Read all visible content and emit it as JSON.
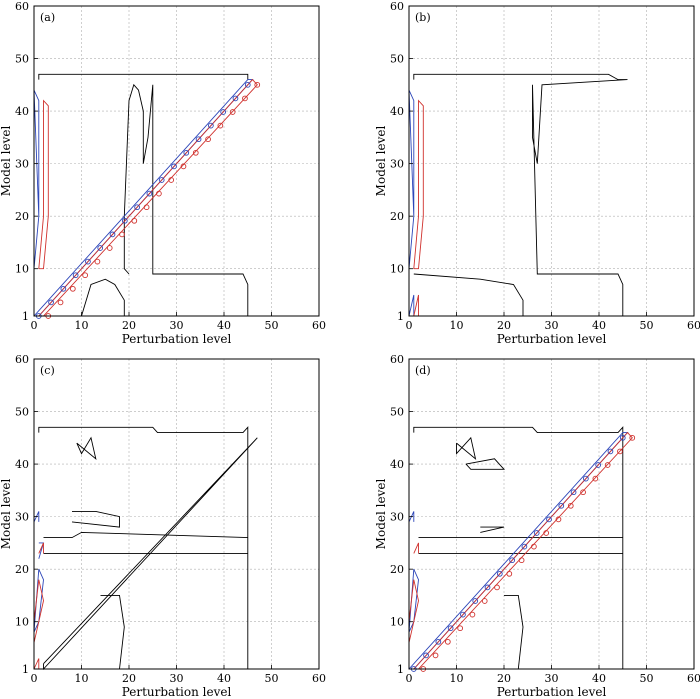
{
  "colors": {
    "positive": "#d0312d",
    "negative": "#2d46b9",
    "zero": "#000000",
    "grid": "#b0b0b0"
  },
  "chart_data": [
    {
      "type": "contour",
      "panel": "(a)",
      "xlabel": "Perturbation level",
      "ylabel": "Model level",
      "xlim": [
        0,
        60
      ],
      "ylim": [
        1,
        60
      ],
      "xticks": [
        0,
        10,
        20,
        30,
        40,
        50,
        60
      ],
      "yticks": [
        1,
        10,
        20,
        30,
        40,
        50,
        60
      ],
      "grid": true,
      "zero_contours": [
        [
          [
            1,
            46
          ],
          [
            1,
            47
          ],
          [
            45,
            47
          ],
          [
            45,
            46
          ]
        ],
        [
          [
            20,
            9
          ],
          [
            19,
            10
          ],
          [
            19,
            20
          ],
          [
            20,
            42
          ],
          [
            21,
            45
          ],
          [
            22,
            44
          ],
          [
            23,
            40
          ],
          [
            23,
            30
          ],
          [
            24,
            35
          ],
          [
            25,
            45
          ],
          [
            25,
            9
          ],
          [
            44,
            9
          ],
          [
            45,
            7
          ],
          [
            45,
            1
          ]
        ],
        [
          [
            10,
            1
          ],
          [
            12,
            7
          ],
          [
            15,
            8
          ],
          [
            17,
            7
          ],
          [
            19,
            4
          ],
          [
            19,
            1
          ]
        ]
      ],
      "negative_contours": [
        [
          [
            0,
            1
          ],
          [
            1,
            2
          ],
          [
            45,
            46
          ],
          [
            46,
            46
          ],
          [
            45,
            45
          ],
          [
            1,
            1
          ],
          [
            0,
            1
          ]
        ],
        [
          [
            0,
            10
          ],
          [
            1,
            20
          ],
          [
            0,
            44
          ],
          [
            1,
            42
          ],
          [
            1,
            20
          ],
          [
            0,
            10
          ]
        ]
      ],
      "positive_contours": [
        [
          [
            1,
            1
          ],
          [
            2,
            1
          ],
          [
            47,
            45
          ],
          [
            46,
            46
          ],
          [
            1,
            1
          ]
        ],
        [
          [
            1,
            10
          ],
          [
            2,
            20
          ],
          [
            2,
            42
          ],
          [
            3,
            41
          ],
          [
            3,
            20
          ],
          [
            2,
            10
          ],
          [
            1,
            10
          ]
        ]
      ],
      "negative_markers": [
        [
          [
            1,
            1
          ],
          [
            45,
            45
          ],
          17
        ]
      ],
      "positive_markers": [
        [
          [
            3,
            1
          ],
          [
            47,
            45
          ],
          17
        ]
      ]
    },
    {
      "type": "contour",
      "panel": "(b)",
      "xlabel": "Perturbation level",
      "ylabel": "Model level",
      "xlim": [
        0,
        60
      ],
      "ylim": [
        1,
        60
      ],
      "xticks": [
        0,
        10,
        20,
        30,
        40,
        50,
        60
      ],
      "yticks": [
        1,
        10,
        20,
        30,
        40,
        50,
        60
      ],
      "grid": true,
      "zero_contours": [
        [
          [
            1,
            46
          ],
          [
            1,
            47
          ],
          [
            42,
            47
          ],
          [
            44,
            46
          ],
          [
            46,
            46
          ],
          [
            28,
            45
          ],
          [
            27,
            30
          ],
          [
            26,
            35
          ],
          [
            26,
            45
          ],
          [
            27,
            9
          ],
          [
            44,
            9
          ],
          [
            45,
            7
          ],
          [
            45,
            1
          ]
        ],
        [
          [
            1,
            9
          ],
          [
            15,
            8
          ],
          [
            22,
            7
          ],
          [
            24,
            4
          ],
          [
            24,
            1
          ]
        ]
      ],
      "negative_contours": [
        [
          [
            0,
            10
          ],
          [
            1,
            20
          ],
          [
            0,
            44
          ],
          [
            1,
            42
          ],
          [
            1,
            20
          ],
          [
            0,
            10
          ]
        ],
        [
          [
            0,
            1
          ],
          [
            1,
            5
          ],
          [
            1,
            1
          ]
        ]
      ],
      "positive_contours": [
        [
          [
            1,
            10
          ],
          [
            2,
            20
          ],
          [
            2,
            42
          ],
          [
            3,
            41
          ],
          [
            3,
            20
          ],
          [
            2,
            10
          ],
          [
            1,
            10
          ]
        ],
        [
          [
            1,
            1
          ],
          [
            2,
            5
          ],
          [
            2,
            1
          ]
        ]
      ],
      "negative_markers": [],
      "positive_markers": []
    },
    {
      "type": "contour",
      "panel": "(c)",
      "xlabel": "Perturbation level",
      "ylabel": "Model level",
      "xlim": [
        0,
        60
      ],
      "ylim": [
        1,
        60
      ],
      "xticks": [
        0,
        10,
        20,
        30,
        40,
        50,
        60
      ],
      "yticks": [
        1,
        10,
        20,
        30,
        40,
        50,
        60
      ],
      "grid": true,
      "zero_contours": [
        [
          [
            1,
            46
          ],
          [
            1,
            47
          ],
          [
            25,
            47
          ],
          [
            26,
            46
          ],
          [
            44,
            46
          ],
          [
            45,
            47
          ],
          [
            45,
            1
          ]
        ],
        [
          [
            2,
            23
          ],
          [
            45,
            23
          ]
        ],
        [
          [
            2,
            26
          ],
          [
            8,
            26
          ],
          [
            10,
            27
          ],
          [
            45,
            26
          ]
        ],
        [
          [
            9,
            44
          ],
          [
            10,
            42
          ],
          [
            12,
            45
          ],
          [
            13,
            41
          ],
          [
            9,
            44
          ]
        ],
        [
          [
            2,
            2
          ],
          [
            47,
            45
          ],
          [
            46,
            44
          ],
          [
            2,
            1
          ],
          [
            2,
            2
          ]
        ],
        [
          [
            14,
            15
          ],
          [
            18,
            15
          ],
          [
            19,
            9
          ],
          [
            18,
            1
          ]
        ],
        [
          [
            8,
            31
          ],
          [
            13,
            31
          ],
          [
            18,
            30
          ],
          [
            18,
            28
          ],
          [
            8,
            29
          ]
        ]
      ],
      "negative_contours": [
        [
          [
            0,
            8
          ],
          [
            1,
            10
          ],
          [
            2,
            18
          ],
          [
            1,
            20
          ],
          [
            0,
            8
          ]
        ],
        [
          [
            0,
            29
          ],
          [
            1,
            31
          ],
          [
            1,
            29
          ]
        ],
        [
          [
            1,
            22
          ],
          [
            2,
            25
          ],
          [
            1,
            25
          ]
        ]
      ],
      "positive_contours": [
        [
          [
            0,
            6
          ],
          [
            1,
            10
          ],
          [
            2,
            14
          ],
          [
            1,
            18
          ],
          [
            0,
            10
          ],
          [
            0,
            6
          ]
        ],
        [
          [
            1,
            23
          ],
          [
            2,
            25
          ],
          [
            2,
            23
          ]
        ],
        [
          [
            0,
            1
          ],
          [
            1,
            3
          ],
          [
            1,
            1
          ]
        ]
      ],
      "negative_markers": [],
      "positive_markers": []
    },
    {
      "type": "contour",
      "panel": "(d)",
      "xlabel": "Perturbation level",
      "ylabel": "Model level",
      "xlim": [
        0,
        60
      ],
      "ylim": [
        1,
        60
      ],
      "xticks": [
        0,
        10,
        20,
        30,
        40,
        50,
        60
      ],
      "yticks": [
        1,
        10,
        20,
        30,
        40,
        50,
        60
      ],
      "grid": true,
      "zero_contours": [
        [
          [
            1,
            46
          ],
          [
            1,
            47
          ],
          [
            26,
            47
          ],
          [
            27,
            46
          ],
          [
            44,
            46
          ],
          [
            45,
            47
          ],
          [
            45,
            1
          ]
        ],
        [
          [
            2,
            23
          ],
          [
            22,
            23
          ],
          [
            45,
            23
          ]
        ],
        [
          [
            2,
            26
          ],
          [
            8,
            26
          ],
          [
            20,
            26
          ],
          [
            45,
            26
          ]
        ],
        [
          [
            10,
            44
          ],
          [
            10,
            42
          ],
          [
            13,
            45
          ],
          [
            14,
            41
          ],
          [
            10,
            44
          ]
        ],
        [
          [
            20,
            15
          ],
          [
            23,
            15
          ],
          [
            24,
            9
          ],
          [
            23,
            1
          ]
        ],
        [
          [
            12,
            40
          ],
          [
            18,
            41
          ],
          [
            20,
            39
          ],
          [
            13,
            39
          ],
          [
            12,
            40
          ]
        ],
        [
          [
            15,
            28
          ],
          [
            20,
            28
          ],
          [
            15,
            27
          ]
        ]
      ],
      "negative_contours": [
        [
          [
            0,
            1
          ],
          [
            1,
            2
          ],
          [
            45,
            46
          ],
          [
            46,
            46
          ],
          [
            45,
            45
          ],
          [
            1,
            1
          ],
          [
            0,
            1
          ]
        ],
        [
          [
            0,
            8
          ],
          [
            1,
            10
          ],
          [
            2,
            18
          ],
          [
            1,
            20
          ],
          [
            0,
            8
          ]
        ],
        [
          [
            0,
            29
          ],
          [
            1,
            31
          ],
          [
            1,
            29
          ]
        ]
      ],
      "positive_contours": [
        [
          [
            1,
            1
          ],
          [
            2,
            1
          ],
          [
            47,
            45
          ],
          [
            46,
            46
          ],
          [
            1,
            1
          ]
        ],
        [
          [
            0,
            6
          ],
          [
            1,
            10
          ],
          [
            2,
            14
          ],
          [
            1,
            18
          ],
          [
            0,
            10
          ],
          [
            0,
            6
          ]
        ],
        [
          [
            1,
            23
          ],
          [
            2,
            25
          ],
          [
            2,
            23
          ]
        ]
      ],
      "negative_markers": [
        [
          [
            1,
            1
          ],
          [
            45,
            45
          ],
          17
        ]
      ],
      "positive_markers": [
        [
          [
            3,
            1
          ],
          [
            47,
            45
          ],
          17
        ]
      ]
    }
  ]
}
